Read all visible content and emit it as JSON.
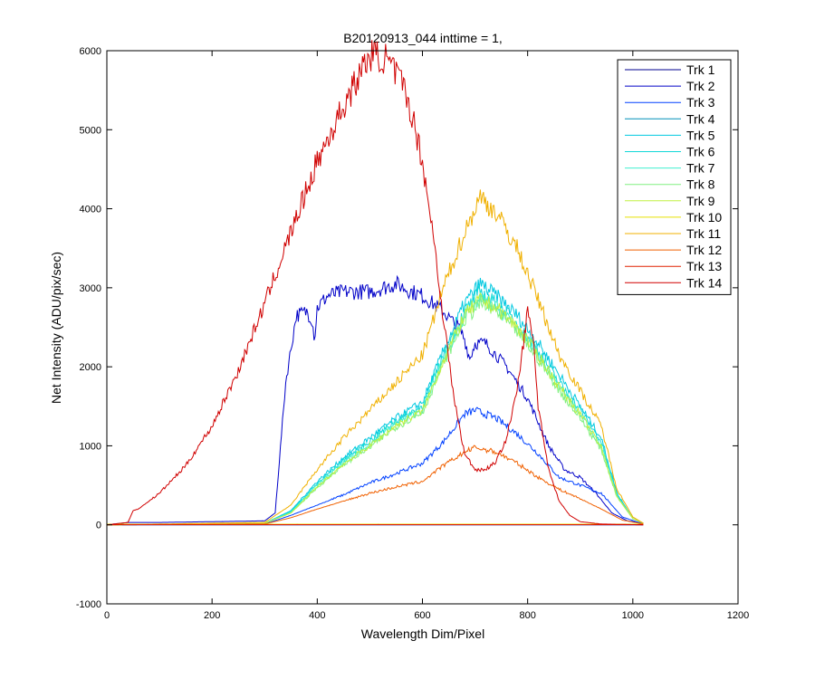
{
  "chart_data": {
    "type": "line",
    "title": "B20120913_044 inttime = 1,",
    "xlabel": "Wavelength Dim/Pixel",
    "ylabel": "Net Intensity (ADU/pix/sec)",
    "xlim": [
      0,
      1200
    ],
    "ylim": [
      -1000,
      6000
    ],
    "xticks": [
      0,
      200,
      400,
      600,
      800,
      1000,
      1200
    ],
    "yticks": [
      -1000,
      0,
      1000,
      2000,
      3000,
      4000,
      5000,
      6000
    ],
    "grid": false,
    "legend_position": "top-right",
    "series": [
      {
        "name": "Trk 1",
        "color": "#00008f",
        "x": [
          0,
          1020
        ],
        "y": [
          0,
          0
        ]
      },
      {
        "name": "Trk 2",
        "color": "#0000c8",
        "x": [
          0,
          40,
          100,
          200,
          300,
          320,
          340,
          360,
          380,
          390,
          395,
          400,
          420,
          450,
          500,
          550,
          580,
          600,
          620,
          640,
          660,
          670,
          680,
          690,
          700,
          720,
          760,
          800,
          840,
          870,
          900,
          930,
          960,
          990,
          1020
        ],
        "y": [
          0,
          30,
          30,
          40,
          50,
          150,
          1800,
          2650,
          2700,
          2600,
          2350,
          2750,
          2900,
          2950,
          2950,
          3050,
          2950,
          2900,
          2800,
          2700,
          2550,
          2500,
          2350,
          2100,
          2300,
          2300,
          2000,
          1600,
          1000,
          700,
          600,
          400,
          150,
          50,
          20
        ]
      },
      {
        "name": "Trk 3",
        "color": "#0040ff",
        "x": [
          0,
          300,
          350,
          400,
          450,
          500,
          550,
          600,
          640,
          680,
          700,
          740,
          780,
          820,
          860,
          900,
          940,
          980,
          1020
        ],
        "y": [
          0,
          10,
          120,
          250,
          380,
          530,
          650,
          780,
          1050,
          1400,
          1450,
          1350,
          1150,
          900,
          600,
          500,
          400,
          100,
          10
        ]
      },
      {
        "name": "Trk 4",
        "color": "#0090b8",
        "x": [
          0,
          1020
        ],
        "y": [
          5,
          5
        ]
      },
      {
        "name": "Trk 5",
        "color": "#00c8e0",
        "x": [
          0,
          300,
          350,
          400,
          450,
          500,
          550,
          600,
          640,
          680,
          710,
          740,
          780,
          820,
          860,
          900,
          940,
          970,
          1000,
          1020
        ],
        "y": [
          0,
          20,
          180,
          550,
          850,
          1100,
          1350,
          1550,
          2200,
          2800,
          3050,
          2900,
          2650,
          2300,
          1900,
          1500,
          1100,
          400,
          80,
          20
        ]
      },
      {
        "name": "Trk 6",
        "color": "#10d8d8",
        "x": [
          0,
          300,
          350,
          400,
          450,
          500,
          550,
          600,
          640,
          680,
          710,
          740,
          780,
          820,
          860,
          900,
          940,
          970,
          1000,
          1020
        ],
        "y": [
          0,
          20,
          170,
          520,
          820,
          1060,
          1320,
          1500,
          2150,
          2700,
          2950,
          2800,
          2550,
          2200,
          1800,
          1450,
          1050,
          380,
          80,
          20
        ]
      },
      {
        "name": "Trk 7",
        "color": "#40f0d0",
        "x": [
          0,
          300,
          350,
          400,
          450,
          500,
          550,
          600,
          640,
          680,
          710,
          740,
          780,
          820,
          860,
          900,
          940,
          970,
          1000,
          1020
        ],
        "y": [
          0,
          20,
          160,
          500,
          790,
          1020,
          1280,
          1460,
          2100,
          2650,
          2850,
          2750,
          2500,
          2150,
          1750,
          1400,
          1000,
          360,
          80,
          20
        ]
      },
      {
        "name": "Trk 8",
        "color": "#80f080",
        "x": [
          0,
          300,
          350,
          400,
          450,
          500,
          550,
          600,
          640,
          680,
          710,
          740,
          780,
          820,
          860,
          900,
          940,
          970,
          1000,
          1020
        ],
        "y": [
          0,
          20,
          150,
          470,
          760,
          980,
          1240,
          1420,
          2050,
          2600,
          2800,
          2700,
          2450,
          2100,
          1700,
          1350,
          950,
          350,
          80,
          20
        ]
      },
      {
        "name": "Trk 9",
        "color": "#c0f040",
        "x": [
          0,
          300,
          350,
          400,
          450,
          500,
          550,
          600,
          640,
          680,
          710,
          740,
          780,
          820,
          860,
          900,
          940,
          970,
          1000,
          1020
        ],
        "y": [
          0,
          20,
          150,
          480,
          770,
          1000,
          1260,
          1440,
          2080,
          2650,
          2850,
          2750,
          2500,
          2150,
          1750,
          1400,
          980,
          360,
          80,
          20
        ]
      },
      {
        "name": "Trk 10",
        "color": "#e8e000",
        "x": [
          0,
          1020
        ],
        "y": [
          8,
          8
        ]
      },
      {
        "name": "Trk 11",
        "color": "#f0b000",
        "x": [
          0,
          300,
          350,
          400,
          450,
          500,
          550,
          600,
          640,
          680,
          710,
          740,
          780,
          820,
          860,
          900,
          940,
          970,
          1000,
          1020
        ],
        "y": [
          0,
          30,
          250,
          700,
          1100,
          1450,
          1800,
          2150,
          3000,
          3700,
          4150,
          3950,
          3500,
          2850,
          2150,
          1700,
          1250,
          450,
          100,
          20
        ]
      },
      {
        "name": "Trk 12",
        "color": "#f06000",
        "x": [
          0,
          300,
          350,
          400,
          450,
          500,
          550,
          600,
          640,
          680,
          700,
          740,
          780,
          820,
          860,
          900,
          940,
          980,
          1020
        ],
        "y": [
          0,
          10,
          90,
          200,
          300,
          400,
          480,
          550,
          750,
          920,
          980,
          920,
          780,
          600,
          450,
          330,
          200,
          60,
          10
        ]
      },
      {
        "name": "Trk 13",
        "color": "#e02000",
        "x": [
          0,
          1020
        ],
        "y": [
          3,
          3
        ]
      },
      {
        "name": "Trk 14",
        "color": "#d00000",
        "x": [
          0,
          40,
          50,
          60,
          100,
          150,
          200,
          250,
          300,
          350,
          400,
          450,
          500,
          530,
          560,
          580,
          600,
          620,
          640,
          660,
          680,
          700,
          720,
          740,
          760,
          780,
          790,
          800,
          810,
          820,
          840,
          860,
          880,
          900,
          940,
          980,
          1020
        ],
        "y": [
          0,
          30,
          180,
          200,
          400,
          750,
          1250,
          1950,
          2800,
          3700,
          4600,
          5300,
          5950,
          5900,
          5600,
          5200,
          4600,
          3700,
          2600,
          1600,
          900,
          700,
          700,
          800,
          1100,
          1700,
          2200,
          2700,
          2400,
          1500,
          700,
          300,
          120,
          40,
          10,
          5,
          0
        ]
      }
    ]
  }
}
